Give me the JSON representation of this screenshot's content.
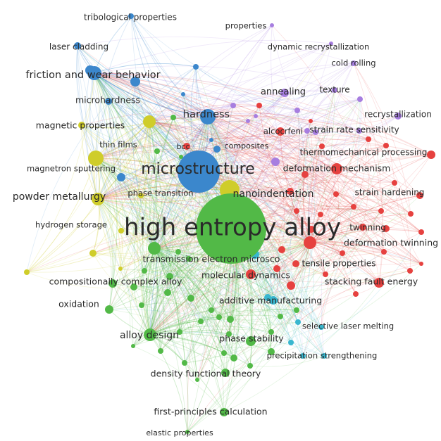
{
  "colors": {
    "blue": "#3b87cc",
    "purple": "#a77ee0",
    "red": "#e6413f",
    "green": "#52b947",
    "yellow": "#cfcd2a",
    "cyan": "#39b7cf"
  },
  "nodes": [
    {
      "id": "high-entropy-alloy",
      "label": "high entropy alloy",
      "cluster": "green",
      "weight": 1.0
    },
    {
      "id": "microstructure",
      "label": "microstructure",
      "cluster": "blue",
      "weight": 0.55
    },
    {
      "id": "nanoindentation",
      "label": "nanoindentation",
      "cluster": "yellow",
      "weight": 0.3
    },
    {
      "id": "hardness",
      "label": "hardness",
      "cluster": "blue",
      "weight": 0.28
    },
    {
      "id": "friction-and-wear-behavior",
      "label": "friction and wear behavior",
      "cluster": "blue",
      "weight": 0.26
    },
    {
      "id": "powder-metallurgy",
      "label": "powder metallurgy",
      "cluster": "yellow",
      "weight": 0.24
    },
    {
      "id": "tribological-properties",
      "label": "tribological properties",
      "cluster": "blue",
      "weight": 0.12
    },
    {
      "id": "laser-cladding",
      "label": "laser cladding",
      "cluster": "blue",
      "weight": 0.14
    },
    {
      "id": "microhardness",
      "label": "microhardness",
      "cluster": "blue",
      "weight": 0.16
    },
    {
      "id": "magnetic-properties",
      "label": "magnetic properties",
      "cluster": "yellow",
      "weight": 0.18
    },
    {
      "id": "thin-films",
      "label": "thin films",
      "cluster": "yellow",
      "weight": 0.22
    },
    {
      "id": "magnetron-sputtering",
      "label": "magnetron sputtering",
      "cluster": "blue",
      "weight": 0.14
    },
    {
      "id": "hydrogen-storage",
      "label": "hydrogen storage",
      "cluster": "yellow",
      "weight": 0.12
    },
    {
      "id": "phase-transition",
      "label": "phase transition",
      "cluster": "yellow",
      "weight": 0.12
    },
    {
      "id": "bcc",
      "label": "bcc",
      "cluster": "red",
      "weight": 0.1
    },
    {
      "id": "composites",
      "label": "composites",
      "cluster": "blue",
      "weight": 0.1
    },
    {
      "id": "properties",
      "label": "properties",
      "cluster": "purple",
      "weight": 0.1
    },
    {
      "id": "dynamic-recrystallization",
      "label": "dynamic recrystallization",
      "cluster": "purple",
      "weight": 0.1
    },
    {
      "id": "cold-rolling",
      "label": "cold rolling",
      "cluster": "purple",
      "weight": 0.1
    },
    {
      "id": "annealing",
      "label": "annealing",
      "cluster": "purple",
      "weight": 0.16
    },
    {
      "id": "texture",
      "label": "texture",
      "cluster": "purple",
      "weight": 0.11
    },
    {
      "id": "recrystallization",
      "label": "recrystallization",
      "cluster": "purple",
      "weight": 0.12
    },
    {
      "id": "alcocrfeni",
      "label": "alcocrfeni",
      "cluster": "red",
      "weight": 0.13
    },
    {
      "id": "strain-rate-sensitivity",
      "label": "strain rate sensitivity",
      "cluster": "purple",
      "weight": 0.12
    },
    {
      "id": "thermomechanical-processing",
      "label": "thermomechanical processing",
      "cluster": "red",
      "weight": 0.13
    },
    {
      "id": "deformation-mechanism",
      "label": "deformation mechanism",
      "cluster": "red",
      "weight": 0.16
    },
    {
      "id": "strain-hardening",
      "label": "strain hardening",
      "cluster": "red",
      "weight": 0.13
    },
    {
      "id": "twinning",
      "label": "twinning",
      "cluster": "red",
      "weight": 0.14
    },
    {
      "id": "deformation-twinning",
      "label": "deformation twinning",
      "cluster": "red",
      "weight": 0.16
    },
    {
      "id": "tensile-properties",
      "label": "tensile properties",
      "cluster": "red",
      "weight": 0.12
    },
    {
      "id": "stacking-fault-energy",
      "label": "stacking fault energy",
      "cluster": "red",
      "weight": 0.15
    },
    {
      "id": "transmission-electron-microsco",
      "label": "transmission electron microsco",
      "cluster": "green",
      "weight": 0.18
    },
    {
      "id": "molecular-dynamics",
      "label": "molecular dynamics",
      "cluster": "red",
      "weight": 0.15
    },
    {
      "id": "compositionally-complex-alloy",
      "label": "compositionally complex alloy",
      "cluster": "green",
      "weight": 0.15
    },
    {
      "id": "oxidation",
      "label": "oxidation",
      "cluster": "green",
      "weight": 0.14
    },
    {
      "id": "additive-manufacturing",
      "label": "additive manufacturing",
      "cluster": "cyan",
      "weight": 0.16
    },
    {
      "id": "alloy-design",
      "label": "alloy design",
      "cluster": "green",
      "weight": 0.2
    },
    {
      "id": "phase-stability",
      "label": "phase stability",
      "cluster": "green",
      "weight": 0.16
    },
    {
      "id": "selective-laser-melting",
      "label": "selective laser melting",
      "cluster": "cyan",
      "weight": 0.12
    },
    {
      "id": "precipitation-strengthening",
      "label": "precipitation strengthening",
      "cluster": "cyan",
      "weight": 0.12
    },
    {
      "id": "density-functional-theory",
      "label": "density functional theory",
      "cluster": "green",
      "weight": 0.16
    },
    {
      "id": "first-principles-calculation",
      "label": "first-principles calculation",
      "cluster": "green",
      "weight": 0.15
    },
    {
      "id": "elastic-properties",
      "label": "elastic properties",
      "cluster": "green",
      "weight": 0.1
    }
  ]
}
